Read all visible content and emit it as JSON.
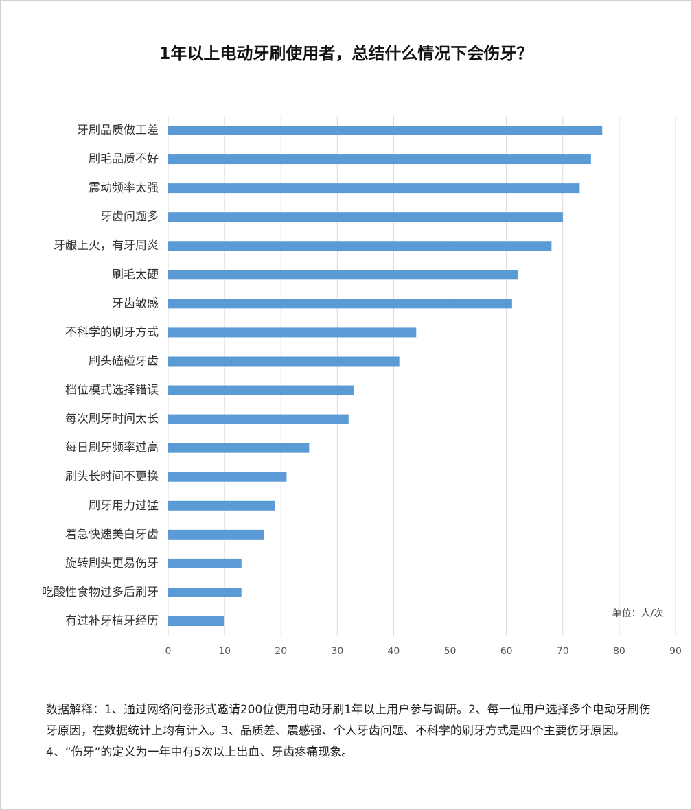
{
  "chart_data": {
    "type": "bar",
    "orientation": "horizontal",
    "title": "1年以上电动牙刷使用者，总结什么情况下会伤牙？",
    "categories": [
      "牙刷品质做工差",
      "刷毛品质不好",
      "震动频率太强",
      "牙齿问题多",
      "牙龈上火，有牙周炎",
      "刷毛太硬",
      "牙齿敏感",
      "不科学的刷牙方式",
      "刷头磕碰牙齿",
      "档位模式选择错误",
      "每次刷牙时间太长",
      "每日刷牙频率过高",
      "刷头长时间不更换",
      "刷牙用力过猛",
      "着急快速美白牙齿",
      "旋转刷头更易伤牙",
      "吃酸性食物过多后刷牙",
      "有过补牙植牙经历"
    ],
    "values": [
      77,
      75,
      73,
      70,
      68,
      62,
      61,
      44,
      41,
      33,
      32,
      25,
      21,
      19,
      17,
      13,
      13,
      10
    ],
    "color": "#5b9bd5",
    "xlim": [
      0,
      90
    ],
    "xticks": [
      0,
      10,
      20,
      30,
      40,
      50,
      60,
      70,
      80,
      90
    ],
    "grid": true,
    "unit_note": "单位：人/次",
    "note": "数据解释：1、通过网络问卷形式邀请200位使用电动牙刷1年以上用户参与调研。2、每一位用户选择多个电动牙刷伤牙原因，在数据统计上均有计入。3、品质差、震感强、个人牙齿问题、不科学的刷牙方式是四个主要伤牙原因。4、“伤牙”的定义为一年中有5次以上出血、牙齿疼痛现象。"
  }
}
